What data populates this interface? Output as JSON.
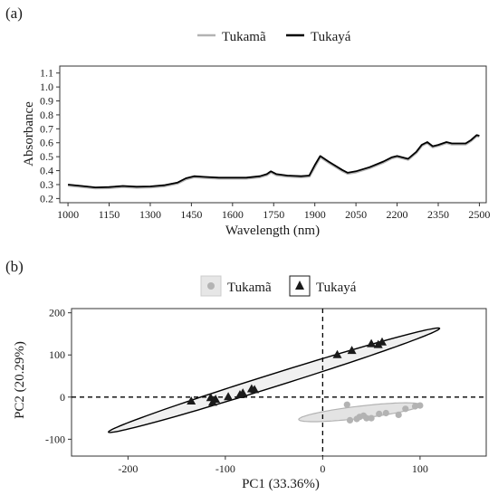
{
  "panel_a": {
    "label": "(a)",
    "legend": [
      {
        "name": "Tukamã",
        "color": "#b3b3b3"
      },
      {
        "name": "Tukayá",
        "color": "#000000"
      }
    ]
  },
  "panel_b": {
    "label": "(b)",
    "legend": [
      {
        "name": "Tukamã",
        "color": "#b3b3b3",
        "marker": "circle"
      },
      {
        "name": "Tukayá",
        "color": "#1a1a1a",
        "marker": "triangle"
      }
    ]
  },
  "chart_data": [
    {
      "type": "line",
      "xlabel": "Wavelength (nm)",
      "ylabel": "Absorbance",
      "xlim": [
        970,
        2525
      ],
      "ylim": [
        0.17,
        1.15
      ],
      "xticks": [
        1000,
        1150,
        1300,
        1450,
        1600,
        1750,
        1900,
        2050,
        2200,
        2350,
        2500
      ],
      "yticks": [
        0.2,
        0.3,
        0.4,
        0.5,
        0.6,
        0.7,
        0.8,
        0.9,
        1.0,
        1.1
      ],
      "ytick_labels": [
        "0.2",
        "0.3",
        "0.4",
        "0.5",
        "0.6",
        "0.7",
        "0.8",
        "0.9",
        "1.0",
        "1.1"
      ],
      "grid": false,
      "legend_position": "top",
      "series": [
        {
          "name": "Tukamã",
          "x": [
            1000,
            1050,
            1100,
            1150,
            1200,
            1250,
            1300,
            1350,
            1400,
            1430,
            1460,
            1500,
            1550,
            1600,
            1650,
            1700,
            1725,
            1740,
            1760,
            1800,
            1850,
            1880,
            1900,
            1920,
            1950,
            2000,
            2020,
            2050,
            2100,
            2150,
            2180,
            2200,
            2240,
            2270,
            2290,
            2310,
            2330,
            2350,
            2380,
            2400,
            2450,
            2470,
            2490,
            2500
          ],
          "y": [
            0.295,
            0.285,
            0.275,
            0.277,
            0.285,
            0.28,
            0.282,
            0.29,
            0.31,
            0.34,
            0.355,
            0.35,
            0.345,
            0.345,
            0.345,
            0.355,
            0.37,
            0.39,
            0.37,
            0.36,
            0.355,
            0.36,
            0.43,
            0.5,
            0.46,
            0.4,
            0.38,
            0.39,
            0.42,
            0.46,
            0.49,
            0.5,
            0.48,
            0.53,
            0.58,
            0.6,
            0.57,
            0.58,
            0.6,
            0.59,
            0.59,
            0.615,
            0.65,
            0.645
          ]
        },
        {
          "name": "Tukayá",
          "x": [
            1000,
            1050,
            1100,
            1150,
            1200,
            1250,
            1300,
            1350,
            1400,
            1430,
            1460,
            1500,
            1550,
            1600,
            1650,
            1700,
            1725,
            1740,
            1760,
            1800,
            1850,
            1880,
            1900,
            1920,
            1950,
            2000,
            2020,
            2050,
            2100,
            2150,
            2180,
            2200,
            2240,
            2270,
            2290,
            2310,
            2330,
            2350,
            2380,
            2400,
            2450,
            2470,
            2490,
            2500
          ],
          "y": [
            0.3,
            0.29,
            0.28,
            0.282,
            0.29,
            0.285,
            0.287,
            0.295,
            0.315,
            0.345,
            0.36,
            0.355,
            0.35,
            0.35,
            0.35,
            0.36,
            0.375,
            0.395,
            0.375,
            0.365,
            0.36,
            0.365,
            0.44,
            0.505,
            0.465,
            0.405,
            0.385,
            0.395,
            0.425,
            0.465,
            0.495,
            0.505,
            0.485,
            0.535,
            0.585,
            0.605,
            0.575,
            0.585,
            0.605,
            0.595,
            0.595,
            0.62,
            0.655,
            0.65
          ]
        }
      ]
    },
    {
      "type": "scatter",
      "xlabel": "PC1 (33.36%)",
      "ylabel": "PC2 (20.29%)",
      "xlim": [
        -258,
        168
      ],
      "ylim": [
        -140,
        210
      ],
      "xticks": [
        -200,
        -100,
        0,
        100
      ],
      "yticks": [
        -100,
        0,
        100,
        200
      ],
      "grid": false,
      "legend_position": "top",
      "reference_lines": {
        "x": 0,
        "y": 0,
        "style": "dashed"
      },
      "series": [
        {
          "name": "Tukamã",
          "marker": "circle",
          "color": "#b3b3b3",
          "x": [
            25,
            28,
            35,
            38,
            42,
            45,
            50,
            58,
            65,
            78,
            85,
            95,
            100
          ],
          "y": [
            -18,
            -55,
            -52,
            -47,
            -44,
            -50,
            -50,
            -40,
            -38,
            -42,
            -28,
            -22,
            -20
          ],
          "ellipse": {
            "cx": 38,
            "cy": -36,
            "semi_major": 65,
            "semi_minor": 14,
            "angle_deg": 16
          }
        },
        {
          "name": "Tukayá",
          "marker": "triangle",
          "color": "#1a1a1a",
          "x": [
            -135,
            -115,
            -113,
            -110,
            -97,
            -85,
            -82,
            -73,
            -70,
            15,
            30,
            50,
            57,
            61
          ],
          "y": [
            -10,
            -2,
            -13,
            -6,
            0,
            5,
            9,
            19,
            17,
            100,
            110,
            126,
            124,
            130
          ],
          "ellipse": {
            "cx": -50,
            "cy": 40,
            "semi_major": 210,
            "semi_minor": 13,
            "angle_deg": 36
          }
        }
      ]
    }
  ]
}
